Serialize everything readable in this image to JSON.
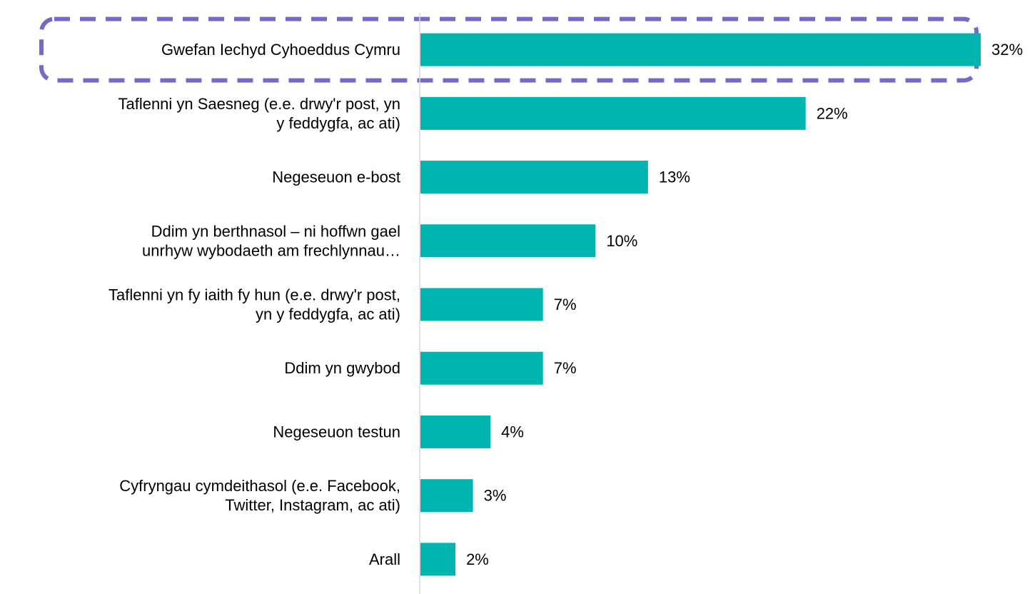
{
  "chart_data": {
    "type": "bar",
    "orientation": "horizontal",
    "categories": [
      [
        "Gwefan Iechyd Cyhoeddus Cymru"
      ],
      [
        "Taflenni yn Saesneg (e.e. drwy'r post, yn",
        "y feddygfa, ac ati)"
      ],
      [
        "Negeseuon e-bost"
      ],
      [
        "Ddim yn berthnasol – ni hoffwn gael",
        "unrhyw wybodaeth am frechlynnau…"
      ],
      [
        "Taflenni yn fy iaith fy hun (e.e. drwy'r post,",
        "yn y feddygfa, ac ati)"
      ],
      [
        "Ddim yn gwybod"
      ],
      [
        "Negeseuon testun"
      ],
      [
        "Cyfryngau cymdeithasol (e.e. Facebook,",
        "Twitter, Instagram, ac ati)"
      ],
      [
        "Arall"
      ]
    ],
    "values": [
      32,
      22,
      13,
      10,
      7,
      7,
      4,
      3,
      2
    ],
    "value_labels": [
      "32%",
      "22%",
      "13%",
      "10%",
      "7%",
      "7%",
      "4%",
      "3%",
      "2%"
    ],
    "xlim": [
      0,
      32
    ],
    "highlighted_category_index": 0,
    "colors": {
      "bar": "#00B5B0",
      "highlight_outline": "#7B68C6",
      "axis": "#D9D9D9",
      "text": "#000000"
    },
    "grid": false,
    "legend": "none"
  }
}
